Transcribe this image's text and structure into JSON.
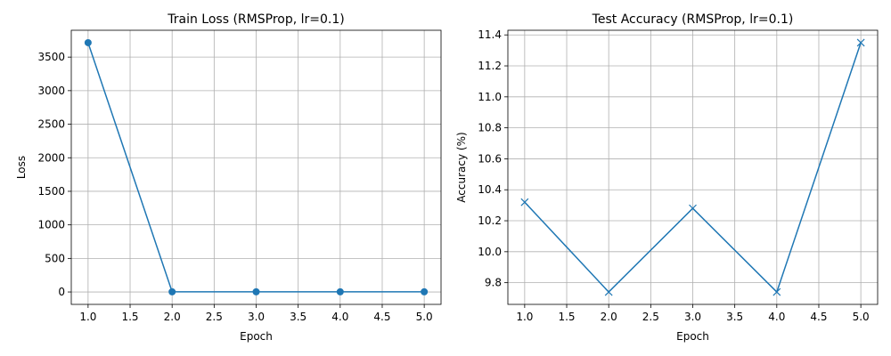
{
  "chart_data": [
    {
      "type": "line",
      "title": "Train Loss (RMSProp, lr=0.1)",
      "xlabel": "Epoch",
      "ylabel": "Loss",
      "x": [
        1,
        2,
        3,
        4,
        5
      ],
      "series": [
        {
          "values": [
            3715,
            2.3,
            2.3,
            2.3,
            2.3
          ],
          "color": "#1f77b4",
          "marker": "circle"
        }
      ],
      "xlim": [
        0.8,
        5.2
      ],
      "ylim": [
        -185,
        3900
      ],
      "xticks": [
        1.0,
        1.5,
        2.0,
        2.5,
        3.0,
        3.5,
        4.0,
        4.5,
        5.0
      ],
      "xtick_labels": [
        "1.0",
        "1.5",
        "2.0",
        "2.5",
        "3.0",
        "3.5",
        "4.0",
        "4.5",
        "5.0"
      ],
      "yticks": [
        0,
        500,
        1000,
        1500,
        2000,
        2500,
        3000,
        3500
      ],
      "ytick_labels": [
        "0",
        "500",
        "1000",
        "1500",
        "2000",
        "2500",
        "3000",
        "3500"
      ],
      "grid": true
    },
    {
      "type": "line",
      "title": "Test Accuracy (RMSProp, lr=0.1)",
      "xlabel": "Epoch",
      "ylabel": "Accuracy (%)",
      "x": [
        1,
        2,
        3,
        4,
        5
      ],
      "series": [
        {
          "values": [
            10.32,
            9.74,
            10.28,
            9.74,
            11.35
          ],
          "color": "#1f77b4",
          "marker": "x"
        }
      ],
      "xlim": [
        0.8,
        5.2
      ],
      "ylim": [
        9.66,
        11.43
      ],
      "xticks": [
        1.0,
        1.5,
        2.0,
        2.5,
        3.0,
        3.5,
        4.0,
        4.5,
        5.0
      ],
      "xtick_labels": [
        "1.0",
        "1.5",
        "2.0",
        "2.5",
        "3.0",
        "3.5",
        "4.0",
        "4.5",
        "5.0"
      ],
      "yticks": [
        9.8,
        10.0,
        10.2,
        10.4,
        10.6,
        10.8,
        11.0,
        11.2,
        11.4
      ],
      "ytick_labels": [
        "9.8",
        "10.0",
        "10.2",
        "10.4",
        "10.6",
        "10.8",
        "11.0",
        "11.2",
        "11.4"
      ],
      "grid": true
    }
  ]
}
